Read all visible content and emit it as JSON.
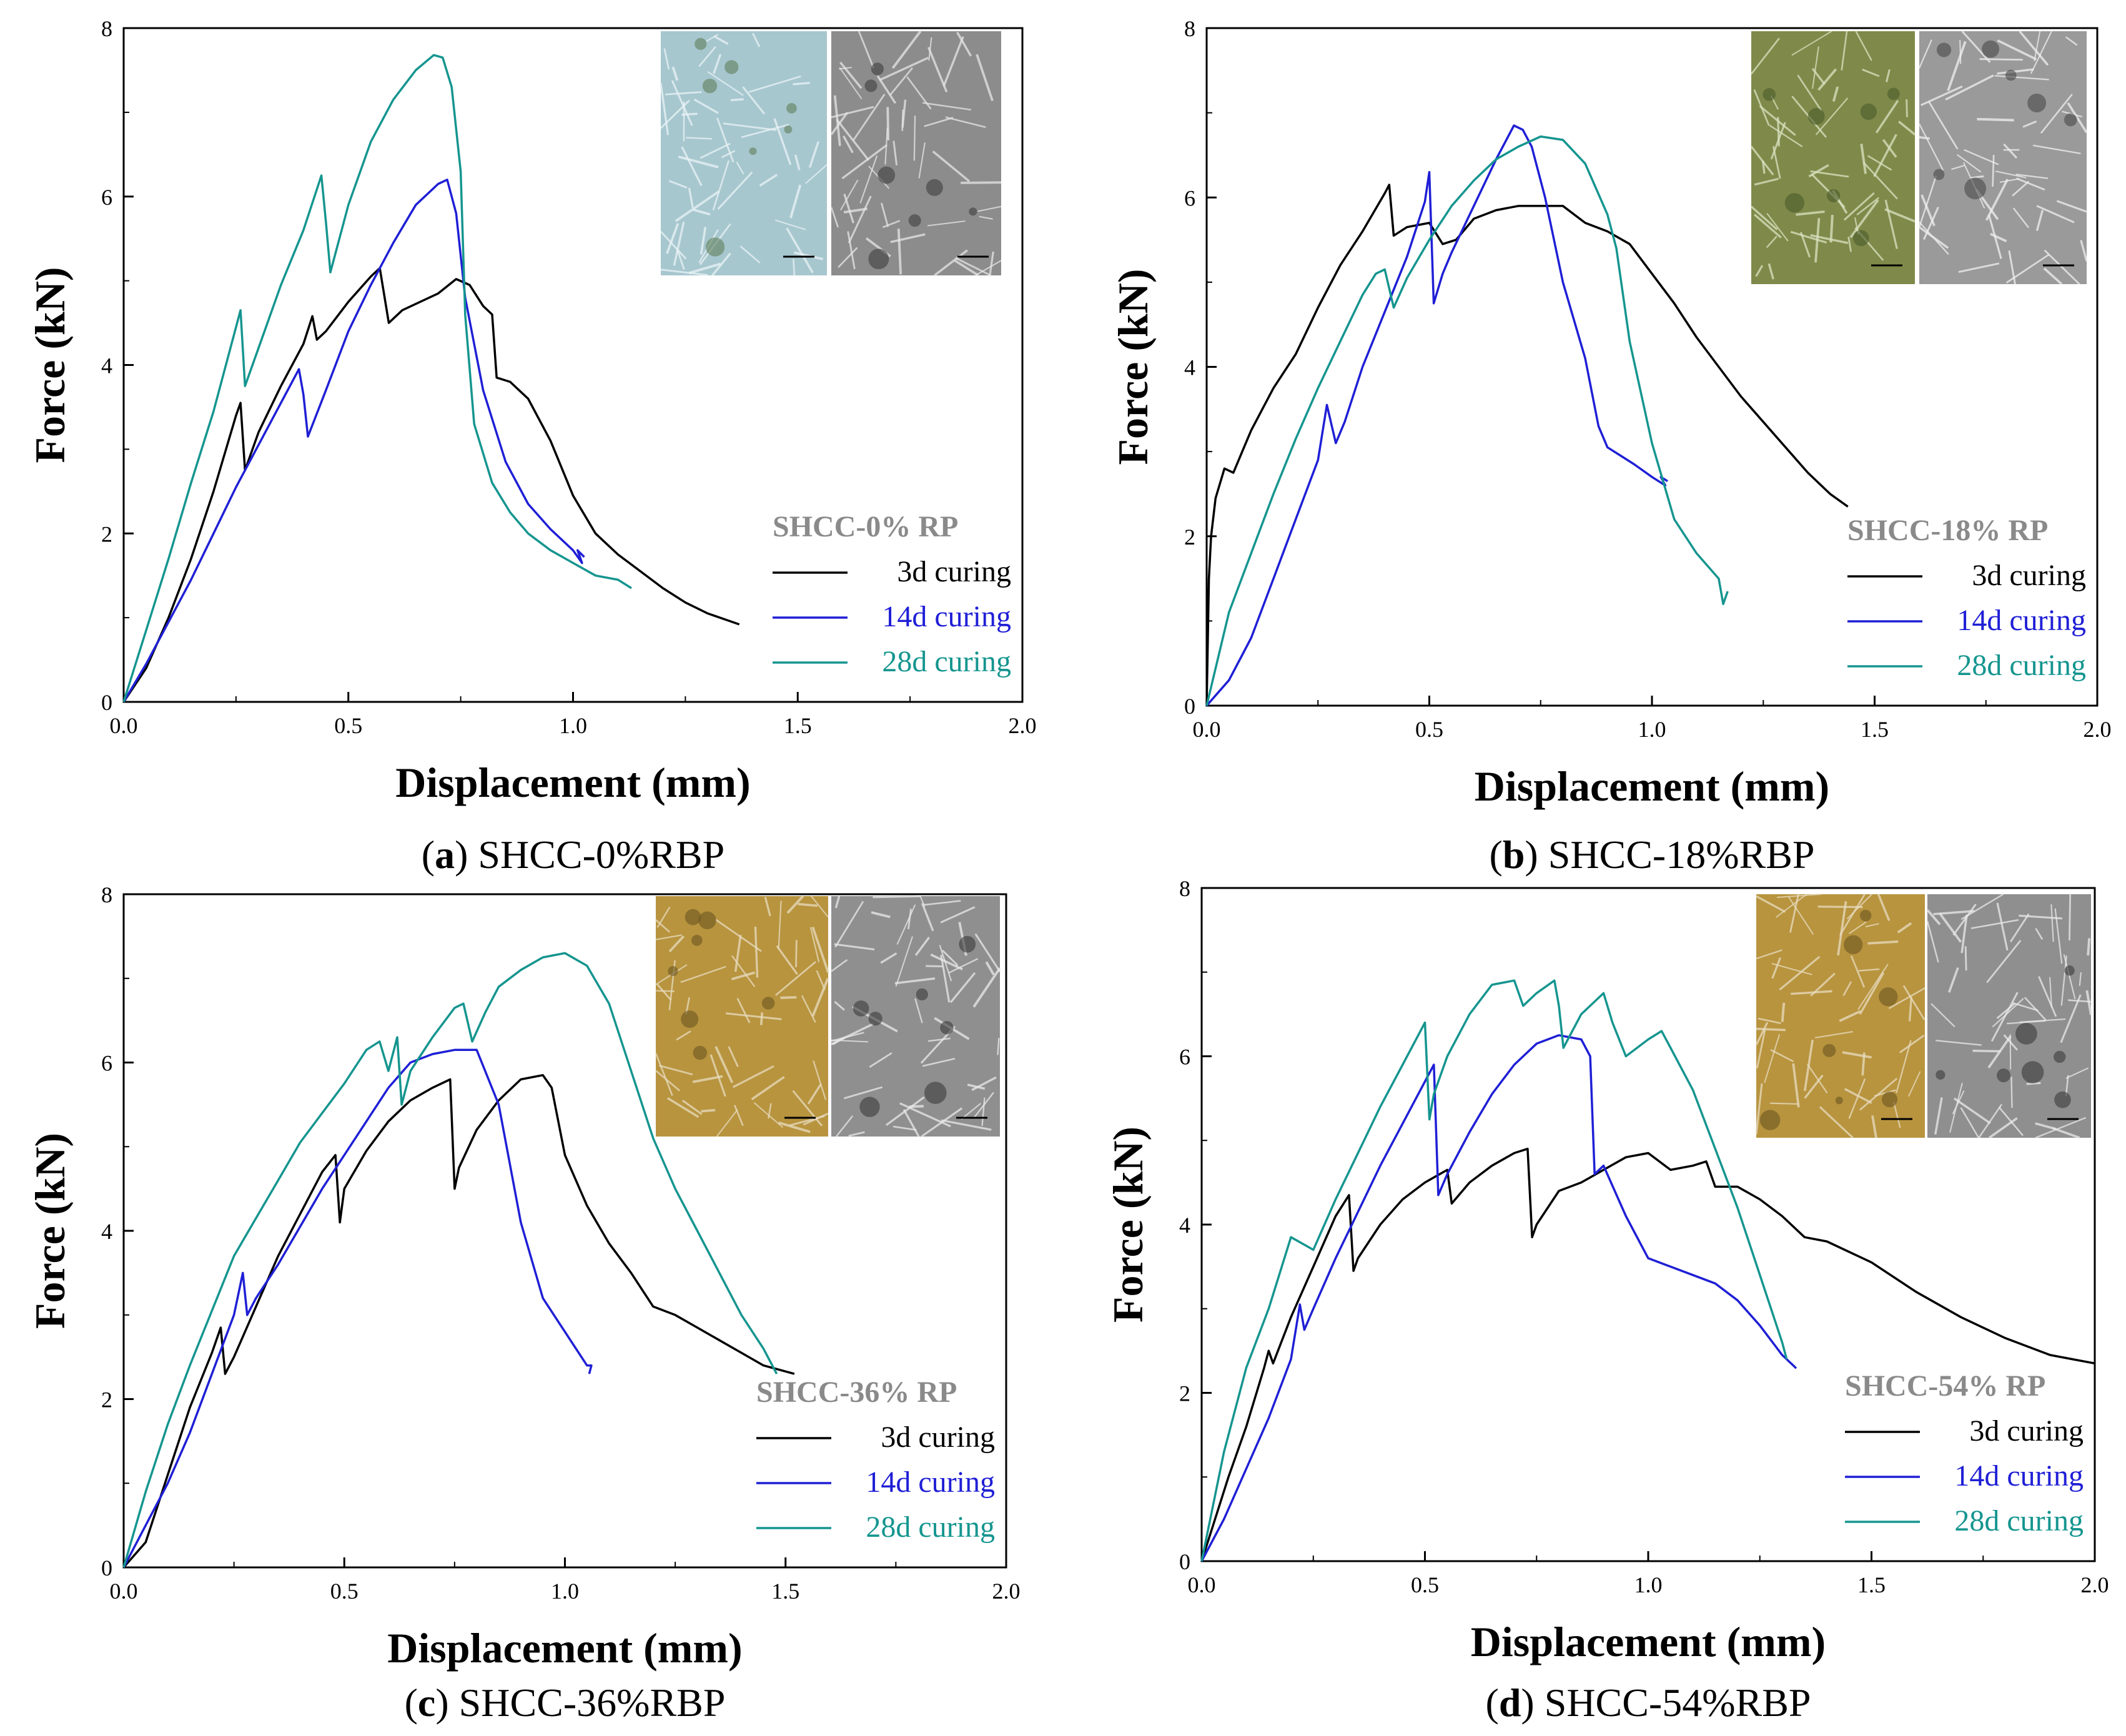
{
  "colors": {
    "curing_3d": "#000000",
    "curing_14d": "#1f1fd6",
    "curing_28d": "#15958f",
    "legend_title": "#8a8a8a"
  },
  "chart_data": [
    {
      "type": "line",
      "panel": "a",
      "caption_letter": "a",
      "caption_text": " SHCC-0%RBP",
      "xlabel": "Displacement (mm)",
      "ylabel": "Force (kN)",
      "xlim": [
        0,
        2.0
      ],
      "ylim": [
        0,
        8
      ],
      "xticks": [
        "0.0",
        "0.5",
        "1.0",
        "1.5",
        "2.0"
      ],
      "yticks": [
        "0",
        "2",
        "4",
        "6",
        "8"
      ],
      "legend_title": "SHCC-0% RP",
      "inset_images": [
        "optical-micrograph",
        "sem-micrograph"
      ],
      "series": [
        {
          "name": "3d curing",
          "color_key": "curing_3d",
          "x": [
            0.0,
            0.05,
            0.1,
            0.15,
            0.2,
            0.25,
            0.26,
            0.27,
            0.3,
            0.35,
            0.4,
            0.42,
            0.43,
            0.45,
            0.5,
            0.55,
            0.57,
            0.59,
            0.62,
            0.66,
            0.7,
            0.74,
            0.77,
            0.8,
            0.82,
            0.83,
            0.86,
            0.9,
            0.95,
            1.0,
            1.05,
            1.1,
            1.15,
            1.2,
            1.25,
            1.3,
            1.37
          ],
          "y": [
            0.0,
            0.4,
            1.0,
            1.7,
            2.5,
            3.4,
            3.55,
            2.75,
            3.2,
            3.75,
            4.25,
            4.58,
            4.3,
            4.4,
            4.75,
            5.05,
            5.15,
            4.5,
            4.65,
            4.75,
            4.85,
            5.02,
            4.95,
            4.7,
            4.6,
            3.85,
            3.8,
            3.6,
            3.1,
            2.45,
            2.0,
            1.75,
            1.55,
            1.35,
            1.18,
            1.05,
            0.92
          ]
        },
        {
          "name": "14d curing",
          "color_key": "curing_14d",
          "x": [
            0.0,
            0.05,
            0.1,
            0.15,
            0.2,
            0.25,
            0.3,
            0.35,
            0.39,
            0.4,
            0.41,
            0.45,
            0.5,
            0.55,
            0.6,
            0.65,
            0.7,
            0.72,
            0.74,
            0.76,
            0.8,
            0.85,
            0.9,
            0.95,
            1.0,
            1.02,
            1.01,
            1.025
          ],
          "y": [
            0.0,
            0.45,
            0.95,
            1.45,
            2.0,
            2.55,
            3.05,
            3.55,
            3.95,
            3.65,
            3.15,
            3.7,
            4.4,
            4.95,
            5.45,
            5.9,
            6.15,
            6.2,
            5.8,
            4.8,
            3.7,
            2.85,
            2.35,
            2.05,
            1.8,
            1.65,
            1.8,
            1.72
          ]
        },
        {
          "name": "28d curing",
          "color_key": "curing_28d",
          "x": [
            0.0,
            0.05,
            0.1,
            0.15,
            0.2,
            0.25,
            0.26,
            0.27,
            0.3,
            0.35,
            0.4,
            0.44,
            0.45,
            0.46,
            0.5,
            0.55,
            0.6,
            0.65,
            0.69,
            0.71,
            0.73,
            0.75,
            0.76,
            0.78,
            0.82,
            0.86,
            0.9,
            0.95,
            1.0,
            1.05,
            1.1,
            1.13
          ],
          "y": [
            0.0,
            0.85,
            1.7,
            2.6,
            3.45,
            4.45,
            4.65,
            3.75,
            4.2,
            4.95,
            5.6,
            6.25,
            5.7,
            5.1,
            5.9,
            6.65,
            7.15,
            7.5,
            7.68,
            7.65,
            7.3,
            6.3,
            4.6,
            3.3,
            2.6,
            2.25,
            2.0,
            1.8,
            1.65,
            1.5,
            1.45,
            1.35
          ]
        }
      ]
    },
    {
      "type": "line",
      "panel": "b",
      "caption_letter": "b",
      "caption_text": " SHCC-18%RBP",
      "xlabel": "Displacement (mm)",
      "ylabel": "Force (kN)",
      "xlim": [
        0,
        2.0
      ],
      "ylim": [
        0,
        8
      ],
      "xticks": [
        "0.0",
        "0.5",
        "1.0",
        "1.5",
        "2.0"
      ],
      "yticks": [
        "0",
        "2",
        "4",
        "6",
        "8"
      ],
      "legend_title": "SHCC-18% RP",
      "inset_images": [
        "optical-micrograph",
        "sem-micrograph"
      ],
      "series": [
        {
          "name": "3d curing",
          "color_key": "curing_3d",
          "x": [
            0.0,
            0.005,
            0.01,
            0.02,
            0.04,
            0.06,
            0.08,
            0.1,
            0.15,
            0.2,
            0.25,
            0.3,
            0.35,
            0.4,
            0.41,
            0.42,
            0.45,
            0.5,
            0.53,
            0.56,
            0.6,
            0.65,
            0.7,
            0.75,
            0.8,
            0.85,
            0.9,
            0.95,
            1.0,
            1.05,
            1.1,
            1.15,
            1.2,
            1.25,
            1.3,
            1.35,
            1.4,
            1.44
          ],
          "y": [
            0.0,
            1.5,
            2.0,
            2.45,
            2.8,
            2.75,
            3.0,
            3.25,
            3.75,
            4.15,
            4.7,
            5.2,
            5.6,
            6.05,
            6.15,
            5.55,
            5.65,
            5.7,
            5.45,
            5.5,
            5.75,
            5.85,
            5.9,
            5.9,
            5.9,
            5.7,
            5.6,
            5.45,
            5.1,
            4.75,
            4.35,
            4.0,
            3.65,
            3.35,
            3.05,
            2.75,
            2.5,
            2.35
          ]
        },
        {
          "name": "14d curing",
          "color_key": "curing_14d",
          "x": [
            0.0,
            0.05,
            0.1,
            0.15,
            0.2,
            0.25,
            0.27,
            0.29,
            0.31,
            0.35,
            0.4,
            0.45,
            0.49,
            0.5,
            0.51,
            0.53,
            0.55,
            0.6,
            0.65,
            0.69,
            0.71,
            0.73,
            0.76,
            0.8,
            0.85,
            0.88,
            0.9,
            0.93,
            0.96,
            1.0,
            1.03,
            1.02,
            1.035
          ],
          "y": [
            0.0,
            0.3,
            0.8,
            1.5,
            2.2,
            2.9,
            3.55,
            3.1,
            3.35,
            4.0,
            4.65,
            5.3,
            5.95,
            6.3,
            4.75,
            5.1,
            5.35,
            5.9,
            6.45,
            6.85,
            6.8,
            6.6,
            6.0,
            5.0,
            4.1,
            3.3,
            3.05,
            2.95,
            2.85,
            2.7,
            2.6,
            2.7,
            2.65
          ]
        },
        {
          "name": "28d curing",
          "color_key": "curing_28d",
          "x": [
            0.0,
            0.05,
            0.1,
            0.15,
            0.2,
            0.25,
            0.3,
            0.35,
            0.38,
            0.4,
            0.42,
            0.45,
            0.5,
            0.55,
            0.6,
            0.65,
            0.7,
            0.75,
            0.8,
            0.85,
            0.9,
            0.92,
            0.95,
            1.0,
            1.05,
            1.1,
            1.15,
            1.16,
            1.17
          ],
          "y": [
            0.0,
            1.1,
            1.8,
            2.5,
            3.15,
            3.75,
            4.3,
            4.85,
            5.1,
            5.15,
            4.7,
            5.05,
            5.5,
            5.9,
            6.2,
            6.45,
            6.6,
            6.72,
            6.68,
            6.4,
            5.8,
            5.4,
            4.3,
            3.1,
            2.2,
            1.8,
            1.5,
            1.2,
            1.35
          ]
        }
      ]
    },
    {
      "type": "line",
      "panel": "c",
      "caption_letter": "c",
      "caption_text": " SHCC-36%RBP",
      "xlabel": "Displacement (mm)",
      "ylabel": "Force (kN)",
      "xlim": [
        0,
        2.0
      ],
      "ylim": [
        0,
        8
      ],
      "xticks": [
        "0.0",
        "0.5",
        "1.0",
        "1.5",
        "2.0"
      ],
      "yticks": [
        "0",
        "2",
        "4",
        "6",
        "8"
      ],
      "legend_title": "SHCC-36% RP",
      "inset_images": [
        "optical-micrograph",
        "sem-micrograph"
      ],
      "series": [
        {
          "name": "3d curing",
          "color_key": "curing_3d",
          "x": [
            0.0,
            0.05,
            0.1,
            0.15,
            0.2,
            0.22,
            0.23,
            0.25,
            0.3,
            0.35,
            0.4,
            0.45,
            0.48,
            0.49,
            0.5,
            0.55,
            0.6,
            0.65,
            0.7,
            0.74,
            0.75,
            0.76,
            0.8,
            0.85,
            0.9,
            0.95,
            0.97,
            1.0,
            1.05,
            1.1,
            1.15,
            1.2,
            1.25,
            1.3,
            1.35,
            1.4,
            1.45,
            1.52
          ],
          "y": [
            0.0,
            0.3,
            1.1,
            1.9,
            2.55,
            2.85,
            2.3,
            2.5,
            3.1,
            3.7,
            4.2,
            4.7,
            4.9,
            4.1,
            4.5,
            4.95,
            5.3,
            5.55,
            5.7,
            5.8,
            4.5,
            4.75,
            5.2,
            5.55,
            5.8,
            5.85,
            5.7,
            4.9,
            4.3,
            3.85,
            3.5,
            3.1,
            3.0,
            2.85,
            2.7,
            2.55,
            2.4,
            2.3
          ]
        },
        {
          "name": "14d curing",
          "color_key": "curing_14d",
          "x": [
            0.0,
            0.05,
            0.1,
            0.15,
            0.2,
            0.25,
            0.27,
            0.28,
            0.3,
            0.35,
            0.4,
            0.45,
            0.5,
            0.55,
            0.6,
            0.65,
            0.7,
            0.75,
            0.8,
            0.85,
            0.9,
            0.95,
            1.0,
            1.05,
            1.06,
            1.055
          ],
          "y": [
            0.0,
            0.5,
            1.0,
            1.6,
            2.3,
            3.0,
            3.5,
            3.0,
            3.2,
            3.6,
            4.05,
            4.5,
            4.9,
            5.3,
            5.7,
            6.0,
            6.1,
            6.15,
            6.15,
            5.5,
            4.1,
            3.2,
            2.8,
            2.4,
            2.4,
            2.3
          ]
        },
        {
          "name": "28d curing",
          "color_key": "curing_28d",
          "x": [
            0.0,
            0.05,
            0.1,
            0.15,
            0.2,
            0.25,
            0.3,
            0.35,
            0.4,
            0.45,
            0.5,
            0.55,
            0.58,
            0.6,
            0.62,
            0.63,
            0.65,
            0.7,
            0.75,
            0.77,
            0.79,
            0.82,
            0.85,
            0.9,
            0.95,
            1.0,
            1.05,
            1.1,
            1.15,
            1.2,
            1.25,
            1.3,
            1.35,
            1.4,
            1.45,
            1.48
          ],
          "y": [
            0.0,
            0.9,
            1.7,
            2.4,
            3.05,
            3.7,
            4.15,
            4.6,
            5.05,
            5.4,
            5.75,
            6.15,
            6.25,
            5.9,
            6.3,
            5.5,
            5.9,
            6.3,
            6.65,
            6.7,
            6.25,
            6.6,
            6.9,
            7.1,
            7.25,
            7.3,
            7.15,
            6.7,
            5.9,
            5.1,
            4.5,
            4.0,
            3.5,
            3.0,
            2.6,
            2.3
          ]
        }
      ]
    },
    {
      "type": "line",
      "panel": "d",
      "caption_letter": "d",
      "caption_text": " SHCC-54%RBP",
      "xlabel": "Displacement (mm)",
      "ylabel": "Force (kN)",
      "xlim": [
        0,
        2.0
      ],
      "ylim": [
        0,
        8
      ],
      "xticks": [
        "0.0",
        "0.5",
        "1.0",
        "1.5",
        "2.0"
      ],
      "yticks": [
        "0",
        "2",
        "4",
        "6",
        "8"
      ],
      "legend_title": "SHCC-54% RP",
      "inset_images": [
        "optical-micrograph",
        "sem-micrograph"
      ],
      "series": [
        {
          "name": "3d curing",
          "color_key": "curing_3d",
          "x": [
            0.0,
            0.03,
            0.06,
            0.1,
            0.14,
            0.15,
            0.16,
            0.2,
            0.25,
            0.3,
            0.33,
            0.34,
            0.35,
            0.4,
            0.45,
            0.5,
            0.55,
            0.56,
            0.6,
            0.65,
            0.7,
            0.73,
            0.74,
            0.75,
            0.8,
            0.85,
            0.9,
            0.95,
            1.0,
            1.05,
            1.1,
            1.13,
            1.15,
            1.2,
            1.25,
            1.3,
            1.35,
            1.4,
            1.5,
            1.6,
            1.7,
            1.8,
            1.9,
            2.0
          ],
          "y": [
            0.0,
            0.5,
            1.0,
            1.6,
            2.3,
            2.5,
            2.35,
            2.9,
            3.5,
            4.1,
            4.35,
            3.45,
            3.6,
            4.0,
            4.3,
            4.5,
            4.65,
            4.25,
            4.5,
            4.7,
            4.85,
            4.9,
            3.85,
            4.0,
            4.4,
            4.5,
            4.65,
            4.8,
            4.85,
            4.65,
            4.7,
            4.75,
            4.45,
            4.45,
            4.3,
            4.1,
            3.85,
            3.8,
            3.55,
            3.2,
            2.9,
            2.65,
            2.45,
            2.35
          ]
        },
        {
          "name": "14d curing",
          "color_key": "curing_14d",
          "x": [
            0.0,
            0.05,
            0.1,
            0.15,
            0.2,
            0.22,
            0.23,
            0.25,
            0.3,
            0.35,
            0.4,
            0.45,
            0.5,
            0.52,
            0.53,
            0.55,
            0.6,
            0.65,
            0.7,
            0.75,
            0.8,
            0.85,
            0.87,
            0.88,
            0.9,
            0.95,
            1.0,
            1.05,
            1.1,
            1.15,
            1.2,
            1.25,
            1.3,
            1.33,
            1.32
          ],
          "y": [
            0.0,
            0.5,
            1.1,
            1.7,
            2.4,
            3.05,
            2.75,
            3.0,
            3.6,
            4.15,
            4.7,
            5.2,
            5.7,
            5.9,
            4.35,
            4.6,
            5.1,
            5.55,
            5.9,
            6.15,
            6.25,
            6.2,
            6.0,
            4.6,
            4.7,
            4.1,
            3.6,
            3.5,
            3.4,
            3.3,
            3.1,
            2.8,
            2.45,
            2.3,
            2.35
          ]
        },
        {
          "name": "28d curing",
          "color_key": "curing_28d",
          "x": [
            0.0,
            0.05,
            0.1,
            0.15,
            0.2,
            0.25,
            0.3,
            0.35,
            0.4,
            0.45,
            0.5,
            0.51,
            0.52,
            0.55,
            0.6,
            0.65,
            0.7,
            0.72,
            0.75,
            0.79,
            0.8,
            0.81,
            0.85,
            0.9,
            0.92,
            0.95,
            1.0,
            1.03,
            1.05,
            1.1,
            1.15,
            1.2,
            1.25,
            1.3,
            1.31
          ],
          "y": [
            0.0,
            1.3,
            2.3,
            3.0,
            3.85,
            3.7,
            4.3,
            4.85,
            5.4,
            5.9,
            6.4,
            5.25,
            5.55,
            6.0,
            6.5,
            6.85,
            6.9,
            6.6,
            6.75,
            6.9,
            6.6,
            6.1,
            6.5,
            6.75,
            6.4,
            6.0,
            6.2,
            6.3,
            6.1,
            5.6,
            4.9,
            4.2,
            3.4,
            2.6,
            2.4
          ]
        }
      ]
    }
  ]
}
